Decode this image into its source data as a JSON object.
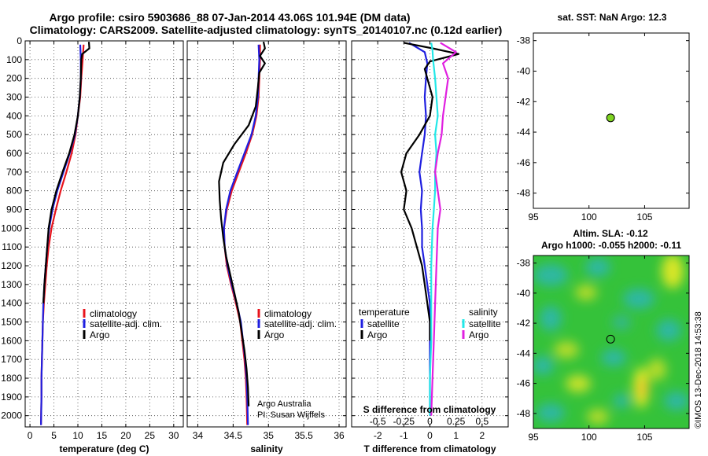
{
  "titles": {
    "line1": "Argo profile: csiro 5903686_88 07-Jan-2014 43.06S 101.94E (DM data)",
    "line2": "Climatology: CARS2009. Satellite-adjusted climatology: synTS_20140107.nc (0.12d earlier)"
  },
  "colors": {
    "climatology": "#e8141c",
    "satellite": "#1f1fe0",
    "argo": "#000000",
    "salinity_satellite": "#22e8e8",
    "salinity_argo": "#e020e0",
    "float_marker": "#7ed321"
  },
  "depth_axis": {
    "ticks": [
      0,
      100,
      200,
      300,
      400,
      500,
      600,
      700,
      800,
      900,
      1000,
      1100,
      1200,
      1300,
      1400,
      1500,
      1600,
      1700,
      1800,
      1900,
      2000
    ],
    "range": [
      0,
      2060
    ]
  },
  "legends": {
    "climatology": "climatology",
    "satellite_adj": "satellite-adj. clim.",
    "argo": "Argo",
    "temperature": "temperature",
    "salinity": "salinity",
    "satellite": "satellite"
  },
  "credits": {
    "line1": "Argo Australia",
    "line2": "PI: Susan Wijffels"
  },
  "side_labels": {
    "sst": "sat. SST: NaN Argo: 12.3",
    "sla": "Altim. SLA: -0.12",
    "h": "Argo h1000: -0.055 h2000: -0.11",
    "imos": "©IMOS 13-Dec-2018 14:53:38"
  },
  "chart_data": [
    {
      "type": "line",
      "name": "temperature-profile",
      "xlabel": "temperature (deg C)",
      "ylabel": "depth",
      "xlim": [
        -1,
        32
      ],
      "ylim": [
        2060,
        0
      ],
      "xticks": [
        0,
        5,
        10,
        15,
        20,
        25,
        30
      ],
      "xtick_labels": [
        "0",
        "5",
        "10",
        "15",
        "20",
        "25",
        "30"
      ],
      "series": [
        {
          "name": "climatology",
          "color": "#e8141c",
          "x": [
            11.2,
            11.0,
            10.7,
            10.5,
            10.0,
            9.5,
            8.7,
            7.6,
            6.4,
            5.4,
            4.5,
            3.9,
            3.5,
            3.2,
            2.9,
            2.7,
            2.6,
            2.5,
            2.4,
            2.4,
            2.3
          ],
          "y": [
            20,
            100,
            200,
            300,
            400,
            500,
            600,
            700,
            800,
            900,
            1000,
            1100,
            1200,
            1300,
            1400,
            1500,
            1600,
            1700,
            1800,
            1900,
            2050
          ]
        },
        {
          "name": "satellite-adj. clim.",
          "color": "#1f1fe0",
          "x": [
            10.5,
            10.6,
            10.6,
            10.4,
            10.0,
            9.4,
            8.3,
            7.0,
            5.7,
            4.7,
            4.0,
            3.6,
            3.3,
            3.0,
            2.8,
            2.7,
            2.6,
            2.5,
            2.4,
            2.4,
            2.3
          ],
          "y": [
            20,
            100,
            200,
            300,
            400,
            500,
            600,
            700,
            800,
            900,
            1000,
            1100,
            1200,
            1300,
            1400,
            1500,
            1600,
            1700,
            1800,
            1900,
            2050
          ]
        },
        {
          "name": "Argo",
          "color": "#000000",
          "x": [
            12.3,
            12.4,
            10.9,
            10.7,
            10.6,
            10.4,
            10.0,
            9.3,
            8.2,
            6.8,
            5.5,
            4.5,
            3.9,
            3.6,
            3.3,
            3.0,
            2.8
          ],
          "y": [
            5,
            40,
            70,
            100,
            200,
            300,
            400,
            500,
            600,
            700,
            800,
            900,
            1000,
            1100,
            1200,
            1300,
            1400
          ]
        }
      ]
    },
    {
      "type": "line",
      "name": "salinity-profile",
      "xlabel": "salinity",
      "ylabel": "depth",
      "xlim": [
        33.85,
        36.1
      ],
      "ylim": [
        2060,
        0
      ],
      "xticks": [
        34,
        34.5,
        35,
        35.5,
        36
      ],
      "xtick_labels": [
        "34",
        "34.5",
        "35",
        "35.5",
        "36"
      ],
      "series": [
        {
          "name": "climatology",
          "color": "#e8141c",
          "x": [
            34.88,
            34.88,
            34.87,
            34.86,
            34.83,
            34.77,
            34.68,
            34.58,
            34.48,
            34.41,
            34.37,
            34.38,
            34.41,
            34.47,
            34.54,
            34.6,
            34.63,
            34.66,
            34.68,
            34.69,
            34.7
          ],
          "y": [
            20,
            100,
            200,
            300,
            400,
            500,
            600,
            700,
            800,
            900,
            1000,
            1100,
            1200,
            1300,
            1400,
            1500,
            1600,
            1700,
            1800,
            1900,
            2050
          ]
        },
        {
          "name": "satellite-adj. clim.",
          "color": "#1f1fe0",
          "x": [
            34.86,
            34.87,
            34.86,
            34.85,
            34.82,
            34.76,
            34.66,
            34.56,
            34.46,
            34.4,
            34.37,
            34.38,
            34.42,
            34.48,
            34.55,
            34.61,
            34.64,
            34.67,
            34.69,
            34.7,
            34.71
          ],
          "y": [
            20,
            100,
            200,
            300,
            400,
            500,
            600,
            700,
            800,
            900,
            1000,
            1100,
            1200,
            1300,
            1400,
            1500,
            1600,
            1700,
            1800,
            1900,
            2050
          ]
        },
        {
          "name": "Argo",
          "color": "#000000",
          "x": [
            34.93,
            34.95,
            34.88,
            34.95,
            34.87,
            34.85,
            34.82,
            34.72,
            34.52,
            34.36,
            34.3,
            34.31,
            34.33,
            34.36,
            34.4,
            34.46,
            34.52,
            34.58,
            34.62,
            34.66,
            34.69,
            34.71,
            34.72
          ],
          "y": [
            5,
            40,
            80,
            120,
            170,
            250,
            350,
            450,
            550,
            650,
            750,
            850,
            950,
            1050,
            1150,
            1250,
            1350,
            1450,
            1550,
            1650,
            1750,
            1850,
            1950
          ]
        }
      ]
    },
    {
      "type": "line",
      "name": "difference-profile",
      "xlabel": "T difference from climatology",
      "xlabel2": "S difference from climatology",
      "xlim": [
        -3,
        3
      ],
      "ylim": [
        2060,
        0
      ],
      "xticks": [
        -2,
        -1,
        0,
        1,
        2
      ],
      "xtick_labels": [
        "-2",
        "-1",
        "0",
        "1",
        "2"
      ],
      "s_ticks": [
        -2,
        -1,
        0,
        1,
        2
      ],
      "s_tick_labels": [
        "-0.5",
        "-0.25",
        "0",
        "0.25",
        "0.5"
      ],
      "series": [
        {
          "name": "T satellite",
          "color": "#1f1fe0",
          "x": [
            -0.8,
            -0.2,
            -0.1,
            -0.15,
            -0.2,
            -0.15,
            -0.2,
            -0.3,
            -0.4,
            -0.3,
            -0.35,
            -0.3,
            -0.3,
            -0.2,
            -0.1,
            0.0,
            0.0,
            0.0,
            0.0,
            0.0,
            0.0
          ],
          "y": [
            10,
            60,
            120,
            200,
            300,
            400,
            500,
            600,
            700,
            800,
            900,
            1000,
            1100,
            1200,
            1300,
            1400,
            1500,
            1600,
            1700,
            1800,
            2000
          ]
        },
        {
          "name": "T Argo",
          "color": "#000000",
          "x": [
            -1.0,
            0.1,
            1.1,
            0.0,
            -0.2,
            0.1,
            0.0,
            -0.4,
            -0.9,
            -1.1,
            -0.9,
            -1.0,
            -0.7,
            -0.5,
            -0.3,
            -0.2,
            -0.1,
            0.0,
            0.0
          ],
          "y": [
            10,
            40,
            70,
            110,
            150,
            300,
            400,
            500,
            600,
            700,
            800,
            900,
            1000,
            1100,
            1200,
            1300,
            1400,
            1500,
            1600
          ]
        },
        {
          "name": "S satellite",
          "color": "#22e8e8",
          "x": [
            0.05,
            0.1,
            0.12,
            0.2,
            0.25,
            0.3,
            0.2,
            0.25,
            0.2,
            0.2,
            0.15,
            0.1,
            0.05,
            0.05,
            0.05,
            0.0,
            0.0
          ],
          "y": [
            10,
            50,
            100,
            200,
            300,
            400,
            500,
            600,
            700,
            800,
            900,
            1000,
            1200,
            1400,
            1600,
            1800,
            2000
          ]
        },
        {
          "name": "S Argo",
          "color": "#e020e0",
          "x": [
            0.4,
            1.0,
            0.5,
            0.7,
            0.6,
            0.5,
            0.45,
            0.3,
            0.2,
            0.3,
            0.4,
            0.3,
            0.25,
            0.2,
            0.15,
            0.1,
            0.05
          ],
          "y": [
            10,
            60,
            120,
            200,
            300,
            400,
            500,
            600,
            700,
            800,
            900,
            1000,
            1200,
            1400,
            1600,
            1800,
            2000
          ]
        }
      ]
    },
    {
      "type": "scatter",
      "name": "sst-map",
      "title": "sat. SST: NaN Argo: 12.3",
      "xlim": [
        95,
        109
      ],
      "ylim": [
        -49,
        -37.5
      ],
      "xticks": [
        95,
        100,
        105
      ],
      "yticks": [
        -38,
        -40,
        -42,
        -44,
        -46,
        -48
      ],
      "points": [
        {
          "x": 101.94,
          "y": -43.06
        }
      ]
    },
    {
      "type": "heatmap",
      "name": "sla-map",
      "title": "Altim. SLA: -0.12",
      "subtitle": "Argo h1000: -0.055 h2000: -0.11",
      "xlim": [
        95,
        109
      ],
      "ylim": [
        -49,
        -37.5
      ],
      "xticks": [
        95,
        100,
        105
      ],
      "yticks": [
        -38,
        -40,
        -42,
        -44,
        -46,
        -48
      ],
      "points": [
        {
          "x": 101.94,
          "y": -43.06
        }
      ]
    }
  ]
}
